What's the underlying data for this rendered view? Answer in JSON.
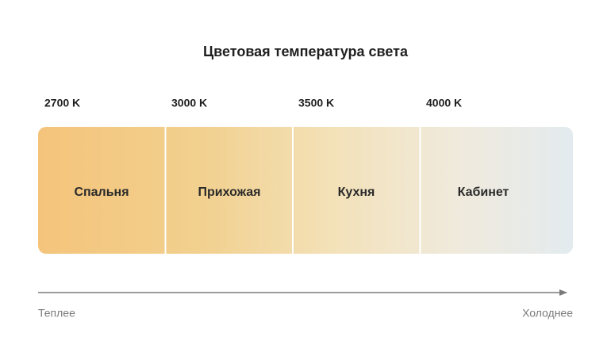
{
  "title": "Цветовая температура света",
  "segments": [
    {
      "temperature": "2700 K",
      "room": "Спальня"
    },
    {
      "temperature": "3000 K",
      "room": "Прихожая"
    },
    {
      "temperature": "3500 K",
      "room": "Кухня"
    },
    {
      "temperature": "4000 K",
      "room": "Кабинет"
    }
  ],
  "axis": {
    "start": "Теплее",
    "end": "Холоднее"
  }
}
